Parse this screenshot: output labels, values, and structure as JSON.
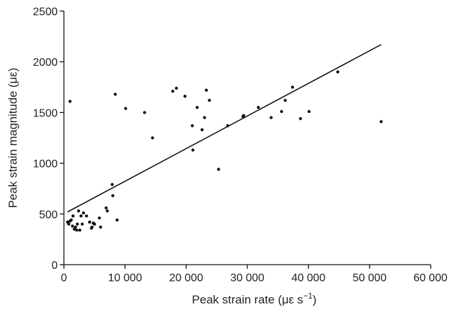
{
  "chart_data": {
    "type": "scatter",
    "title": "",
    "xlabel": "Peak strain rate (με s",
    "xlabel_superscript": "−1",
    "xlabel_suffix": ")",
    "ylabel": "Peak strain magnitude (με)",
    "xlim": [
      0,
      60000
    ],
    "ylim": [
      0,
      2500
    ],
    "x_ticks": [
      0,
      10000,
      20000,
      30000,
      40000,
      50000,
      60000
    ],
    "x_tick_labels": [
      "0",
      "10 000",
      "20 000",
      "30 000",
      "40 000",
      "50 000",
      "60 000"
    ],
    "y_ticks": [
      0,
      500,
      1000,
      1500,
      2000,
      2500
    ],
    "y_tick_labels": [
      "0",
      "500",
      "1000",
      "1500",
      "2000",
      "2500"
    ],
    "grid": false,
    "legend": "none",
    "point_color": "#111111",
    "series": [
      {
        "points": [
          [
            1000,
            1610
          ],
          [
            600,
            420
          ],
          [
            800,
            400
          ],
          [
            1000,
            430
          ],
          [
            1200,
            440
          ],
          [
            1400,
            380
          ],
          [
            1500,
            480
          ],
          [
            1700,
            350
          ],
          [
            1900,
            370
          ],
          [
            2100,
            340
          ],
          [
            2200,
            400
          ],
          [
            2400,
            530
          ],
          [
            2600,
            340
          ],
          [
            2800,
            480
          ],
          [
            3000,
            400
          ],
          [
            3200,
            510
          ],
          [
            3700,
            480
          ],
          [
            4200,
            420
          ],
          [
            4500,
            360
          ],
          [
            4600,
            370
          ],
          [
            4800,
            410
          ],
          [
            5000,
            400
          ],
          [
            5800,
            460
          ],
          [
            6000,
            370
          ],
          [
            6900,
            560
          ],
          [
            7100,
            530
          ],
          [
            7900,
            790
          ],
          [
            8000,
            680
          ],
          [
            8400,
            1680
          ],
          [
            8700,
            440
          ],
          [
            10100,
            1540
          ],
          [
            13200,
            1500
          ],
          [
            14500,
            1250
          ],
          [
            17800,
            1710
          ],
          [
            18400,
            1740
          ],
          [
            19800,
            1660
          ],
          [
            21000,
            1370
          ],
          [
            21100,
            1130
          ],
          [
            21800,
            1550
          ],
          [
            22600,
            1330
          ],
          [
            23000,
            1450
          ],
          [
            23300,
            1720
          ],
          [
            23800,
            1620
          ],
          [
            25300,
            940
          ],
          [
            26800,
            1370
          ],
          [
            29300,
            1460
          ],
          [
            29400,
            1470
          ],
          [
            31800,
            1550
          ],
          [
            33900,
            1450
          ],
          [
            35600,
            1510
          ],
          [
            36200,
            1620
          ],
          [
            37400,
            1750
          ],
          [
            38700,
            1440
          ],
          [
            40100,
            1510
          ],
          [
            44800,
            1900
          ],
          [
            51900,
            1410
          ]
        ]
      }
    ],
    "trendline": {
      "x": [
        600,
        51900
      ],
      "y": [
        520,
        2170
      ],
      "color": "#111111"
    }
  }
}
